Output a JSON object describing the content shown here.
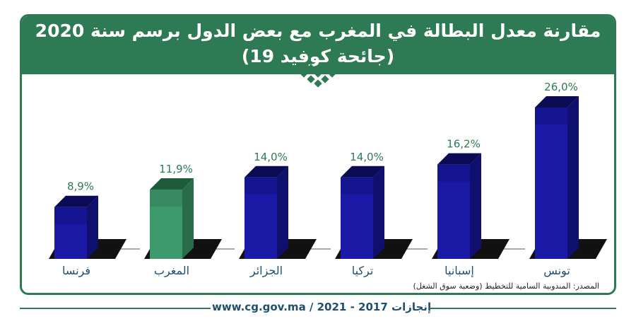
{
  "header": {
    "title_line1": "مقارنة معدل البطالة في المغرب مع بعض الدول برسم سنة 2020",
    "title_line2": "(جائحة كوفيد 19)"
  },
  "source_text": "المصدر: المندوبية السامية للتخطيط (وضعية سوق الشغل)",
  "footer": {
    "website": "www.cg.gov.ma",
    "period": "إنجازات 2017 - 2021"
  },
  "colors": {
    "brand_green": "#2d7a55",
    "bar_blue": "#1a1aa6",
    "bar_highlight_green": "#3d9a6c",
    "label_green": "#2d7a55"
  },
  "chart_data": {
    "type": "bar",
    "categories": [
      "فرنسا",
      "المغرب",
      "الجزائر",
      "تركيا",
      "إسبانيا",
      "تونس"
    ],
    "values": [
      8.9,
      11.9,
      14.0,
      14.0,
      16.2,
      26.0
    ],
    "value_labels": [
      "8,9%",
      "11,9%",
      "14,0%",
      "14,0%",
      "16,2%",
      "26,0%"
    ],
    "highlight_category": "المغرب",
    "unit": "%",
    "ylim": [
      0,
      26
    ],
    "grid": false,
    "legend": "none"
  }
}
